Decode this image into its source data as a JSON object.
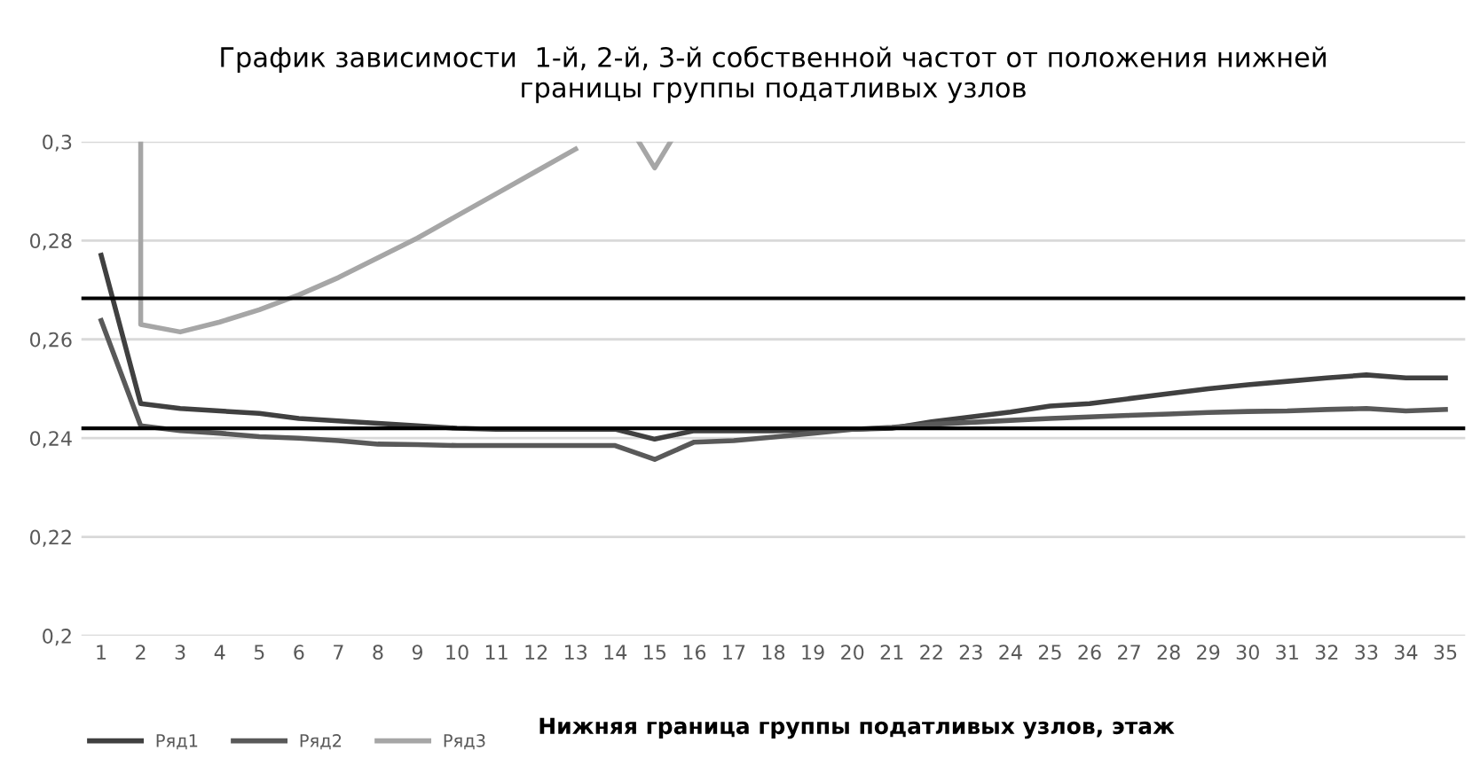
{
  "chart_data": {
    "type": "line",
    "title": "График зависимости  1-й, 2-й, 3-й собственной частот от положения нижней\nграницы группы податливых узлов",
    "xlabel": "Нижняя граница группы податливых узлов, этаж",
    "x": [
      1,
      2,
      3,
      4,
      5,
      6,
      7,
      8,
      9,
      10,
      11,
      12,
      13,
      14,
      15,
      16,
      17,
      18,
      19,
      20,
      21,
      22,
      23,
      24,
      25,
      26,
      27,
      28,
      29,
      30,
      31,
      32,
      33,
      34,
      35
    ],
    "xlim": [
      0.5,
      35.5
    ],
    "xticks": [
      1,
      2,
      3,
      4,
      5,
      6,
      7,
      8,
      9,
      10,
      11,
      12,
      13,
      14,
      15,
      16,
      17,
      18,
      19,
      20,
      21,
      22,
      23,
      24,
      25,
      26,
      27,
      28,
      29,
      30,
      31,
      32,
      33,
      34,
      35
    ],
    "ylim": [
      0.2,
      0.3
    ],
    "yticks": [
      {
        "value": 0.2,
        "label": "0,2"
      },
      {
        "value": 0.22,
        "label": "0,22"
      },
      {
        "value": 0.24,
        "label": "0,24"
      },
      {
        "value": 0.26,
        "label": "0,26"
      },
      {
        "value": 0.28,
        "label": "0,28"
      },
      {
        "value": 0.3,
        "label": "0,3"
      }
    ],
    "grid": "y",
    "legend": "bottom left",
    "marker": "none",
    "line_style": "solid",
    "series": [
      {
        "name": "Ряд1",
        "color": "#404040",
        "values": [
          0.277,
          0.247,
          0.246,
          0.2455,
          0.245,
          0.244,
          0.2435,
          0.243,
          0.2425,
          0.242,
          0.2418,
          0.2418,
          0.2418,
          0.2418,
          0.2398,
          0.2415,
          0.2415,
          0.2415,
          0.2417,
          0.2418,
          0.242,
          0.2433,
          0.2443,
          0.2453,
          0.2465,
          0.247,
          0.248,
          0.249,
          0.25,
          0.2508,
          0.2515,
          0.2522,
          0.2528,
          0.2522,
          0.2522
        ]
      },
      {
        "name": "Ряд2",
        "color": "#595959",
        "values": [
          0.2638,
          0.2425,
          0.2415,
          0.241,
          0.2403,
          0.24,
          0.2395,
          0.2388,
          0.2387,
          0.2385,
          0.2385,
          0.2385,
          0.2385,
          0.2385,
          0.2357,
          0.2392,
          0.2395,
          0.2402,
          0.241,
          0.2418,
          0.2422,
          0.2428,
          0.2432,
          0.2436,
          0.244,
          0.2443,
          0.2446,
          0.2449,
          0.2452,
          0.2454,
          0.2455,
          0.2458,
          0.246,
          0.2455,
          0.2458
        ]
      },
      {
        "name": "Ряд3",
        "color": "#a6a6a6",
        "x": [
          2,
          2,
          3,
          4,
          5,
          6,
          7,
          8,
          9,
          10,
          11,
          12,
          13,
          14,
          14.6,
          15,
          15.4
        ],
        "values": [
          0.3,
          0.263,
          0.2615,
          0.2635,
          0.266,
          0.269,
          0.2725,
          0.2765,
          0.2805,
          0.285,
          0.2895,
          0.294,
          0.2985,
          null,
          0.3,
          0.2947,
          0.3
        ]
      }
    ],
    "ref_lines": [
      {
        "axis": "y",
        "value": 0.2683,
        "color": "#000000"
      },
      {
        "axis": "y",
        "value": 0.242,
        "color": "#000000"
      }
    ]
  }
}
